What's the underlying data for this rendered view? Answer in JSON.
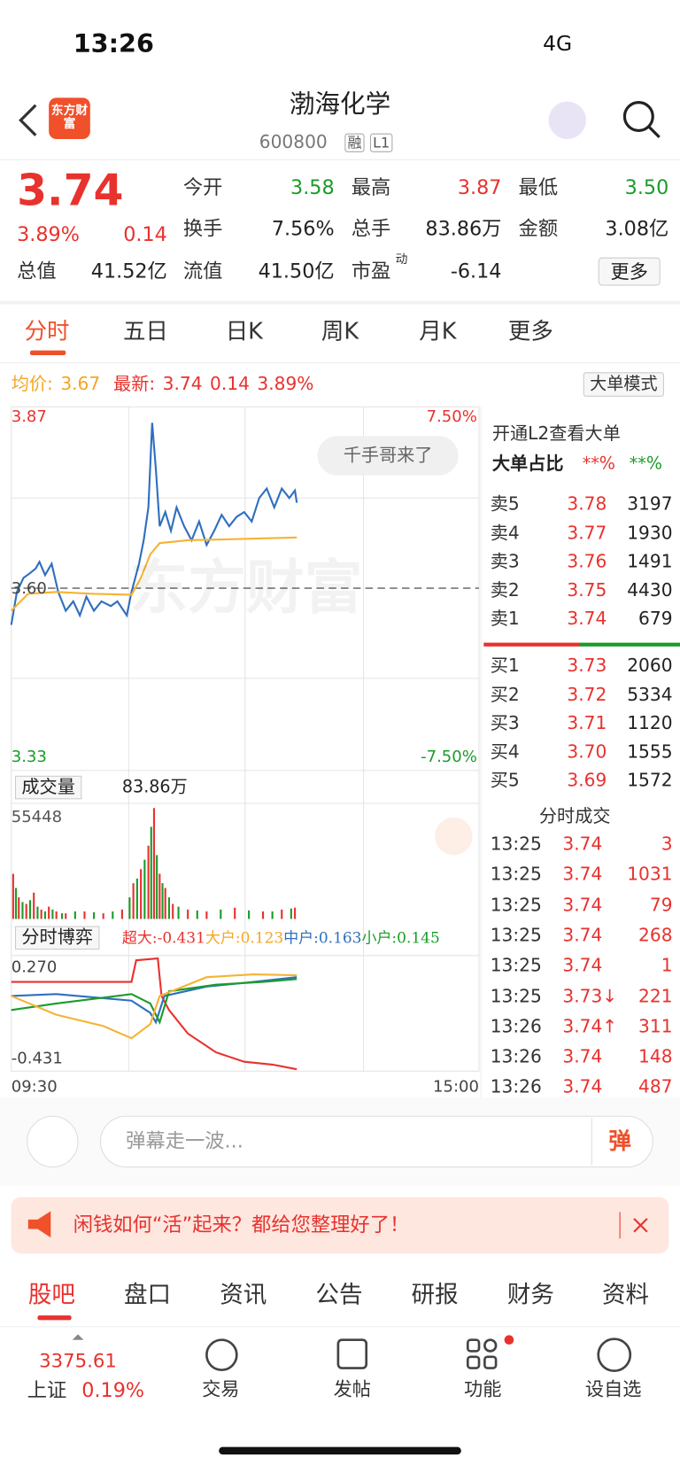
{
  "status_bar": {
    "time": "13:26",
    "network": "4G"
  },
  "header": {
    "logo": "东方财富",
    "name": "渤海化学",
    "code": "600800",
    "badges": [
      "融",
      "L1"
    ]
  },
  "quote": {
    "price": "3.74",
    "change_pct": "3.89%",
    "change": "0.14",
    "fields": [
      {
        "label": "今开",
        "value": "3.58"
      },
      {
        "label": "最高",
        "value": "3.87"
      },
      {
        "label": "最低",
        "value": "3.50"
      },
      {
        "label": "换手",
        "value": "7.56%"
      },
      {
        "label": "总手",
        "value": "83.86万"
      },
      {
        "label": "金额",
        "value": "3.08亿"
      },
      {
        "label": "总值",
        "value": "41.52亿"
      },
      {
        "label": "流值",
        "value": "41.50亿"
      },
      {
        "label": "市盈",
        "sup": "动",
        "value": "-6.14"
      }
    ],
    "more": "更多"
  },
  "tabs": [
    "分时",
    "五日",
    "日K",
    "周K",
    "月K",
    "更多"
  ],
  "summary": {
    "avg_label": "均价:",
    "avg": "3.67",
    "latest_label": "最新:",
    "latest": "3.74",
    "change": "0.14",
    "pct": "3.89%",
    "mode": "大单模式"
  },
  "chart": {
    "y_top": "3.87",
    "y_mid": "3.60",
    "y_bottom": "3.33",
    "pct_top": "7.50%",
    "pct_bottom": "-7.50%",
    "watermark": "东方财富",
    "bubble": "千手哥来了",
    "volume_label": "成交量",
    "volume": "83.86万",
    "volume_max": "55448",
    "game_label": "分时博弈",
    "flows": [
      {
        "name": "超大:",
        "value": "-0.431"
      },
      {
        "name": "大户:",
        "value": "0.123"
      },
      {
        "name": "中户:",
        "value": "0.163"
      },
      {
        "name": "小户:",
        "value": "0.145"
      }
    ],
    "game_top": "0.270",
    "game_bottom": "-0.431",
    "x_start": "09:30",
    "x_end": "15:00"
  },
  "level2": {
    "promo": "开通L2查看大单",
    "ratio_label": "大单占比",
    "ratio_buy": "**%",
    "ratio_sell": "**%",
    "asks": [
      [
        "卖5",
        "3.78",
        "3197"
      ],
      [
        "卖4",
        "3.77",
        "1930"
      ],
      [
        "卖3",
        "3.76",
        "1491"
      ],
      [
        "卖2",
        "3.75",
        "4430"
      ],
      [
        "卖1",
        "3.74",
        "679"
      ]
    ],
    "bids": [
      [
        "买1",
        "3.73",
        "2060"
      ],
      [
        "买2",
        "3.72",
        "5334"
      ],
      [
        "买3",
        "3.71",
        "1120"
      ],
      [
        "买4",
        "3.70",
        "1555"
      ],
      [
        "买5",
        "3.69",
        "1572"
      ]
    ]
  },
  "trades": {
    "title": "分时成交",
    "rows": [
      [
        "13:25",
        "3.74",
        "3"
      ],
      [
        "13:25",
        "3.74",
        "1031"
      ],
      [
        "13:25",
        "3.74",
        "79"
      ],
      [
        "13:25",
        "3.74",
        "268"
      ],
      [
        "13:25",
        "3.74",
        "1"
      ],
      [
        "13:25",
        "3.73↓",
        "221"
      ],
      [
        "13:26",
        "3.74↑",
        "311"
      ],
      [
        "13:26",
        "3.74",
        "148"
      ],
      [
        "13:26",
        "3.74",
        "487"
      ]
    ]
  },
  "comment": {
    "placeholder": "弹幕走一波...",
    "button": "弹"
  },
  "banner": {
    "text": "闲钱如何“活”起来？都给您整理好了！"
  },
  "bottom_tabs": [
    "股吧",
    "盘口",
    "资讯",
    "公告",
    "研报",
    "财务",
    "资料"
  ],
  "nav": {
    "index_value": "3375.61",
    "index_name": "上证",
    "index_pct": "0.19%",
    "items": [
      "交易",
      "发帖",
      "功能",
      "设自选"
    ]
  }
}
